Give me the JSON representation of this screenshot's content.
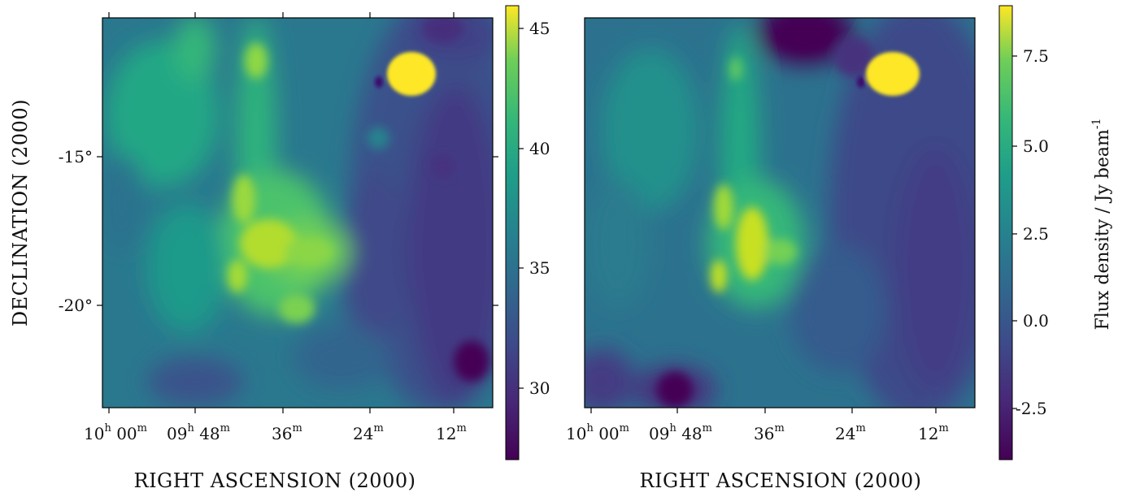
{
  "chart_data": [
    {
      "type": "heatmap",
      "panel": "left",
      "xlabel": "RIGHT ASCENSION  (2000)",
      "ylabel": "DECLINATION  (2000)",
      "x_ticks": [
        {
          "h": "10",
          "m": "00",
          "label_h": "10",
          "label_m": "00"
        },
        {
          "h": "09",
          "m": "48",
          "label_h": "09",
          "label_m": "48"
        },
        {
          "m": "36",
          "label_m": "36"
        },
        {
          "m": "24",
          "label_m": "24"
        },
        {
          "m": "12",
          "label_m": "12"
        }
      ],
      "y_ticks": [
        {
          "value": -15,
          "label": "-15°"
        },
        {
          "value": -20,
          "label": "-20°"
        }
      ],
      "colorbar": {
        "colormap": "viridis",
        "range": [
          26.5,
          46
        ],
        "ticks": [
          {
            "value": 45,
            "label": "45"
          },
          {
            "value": 40,
            "label": "40"
          },
          {
            "value": 35,
            "label": "35"
          },
          {
            "value": 30,
            "label": "30"
          }
        ],
        "label": ""
      }
    },
    {
      "type": "heatmap",
      "panel": "right",
      "xlabel": "RIGHT ASCENSION  (2000)",
      "ylabel": "",
      "x_ticks": [
        {
          "label_h": "10",
          "label_m": "00"
        },
        {
          "label_h": "09",
          "label_m": "48"
        },
        {
          "label_m": "36"
        },
        {
          "label_m": "24"
        },
        {
          "label_m": "12"
        }
      ],
      "colorbar": {
        "colormap": "viridis",
        "range": [
          -4.2,
          9
        ],
        "ticks": [
          {
            "value": 7.5,
            "label": "7.5"
          },
          {
            "value": 5.0,
            "label": "5.0"
          },
          {
            "value": 2.5,
            "label": "2.5"
          },
          {
            "value": 0.0,
            "label": "0.0"
          },
          {
            "value": -2.5,
            "label": "-2.5"
          }
        ],
        "label": "Flux density / Jy beam",
        "label_superscript": "-1"
      }
    }
  ]
}
